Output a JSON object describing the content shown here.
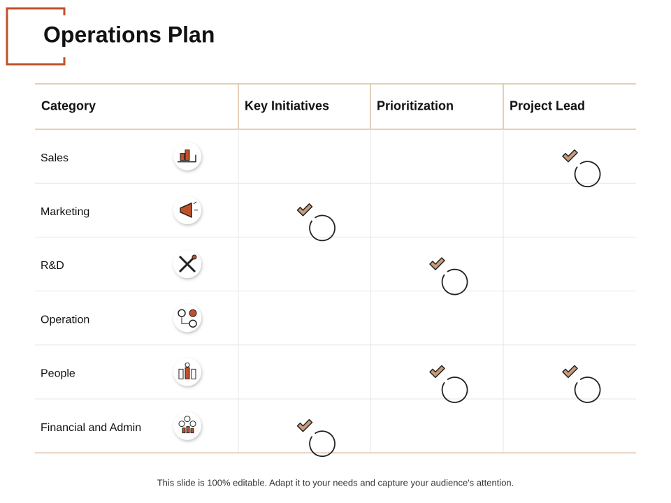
{
  "header": {
    "title": "Operations Plan"
  },
  "table": {
    "columns": [
      "Category",
      "Key Initiatives",
      "Prioritization",
      "Project Lead"
    ],
    "rows": [
      {
        "category": "Sales",
        "checks": [
          false,
          false,
          true
        ]
      },
      {
        "category": "Marketing",
        "checks": [
          true,
          false,
          false
        ]
      },
      {
        "category": "R&D",
        "checks": [
          false,
          true,
          false
        ]
      },
      {
        "category": "Operation",
        "checks": [
          false,
          false,
          false
        ]
      },
      {
        "category": "People",
        "checks": [
          false,
          true,
          true
        ]
      },
      {
        "category": "Financial and Admin",
        "checks": [
          true,
          false,
          false
        ]
      }
    ]
  },
  "footer": {
    "text": "This slide is 100% editable. Adapt it to your needs and capture your audience's attention."
  }
}
